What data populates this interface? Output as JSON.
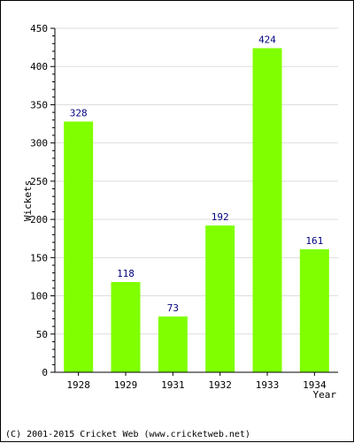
{
  "chart_data": {
    "type": "bar",
    "categories": [
      "1928",
      "1929",
      "1931",
      "1932",
      "1933",
      "1934"
    ],
    "values": [
      328,
      118,
      73,
      192,
      424,
      161
    ],
    "title": "",
    "xlabel": "Year",
    "ylabel": "Wickets",
    "ylim": [
      0,
      450
    ],
    "yticks": [
      0,
      50,
      100,
      150,
      200,
      250,
      300,
      350,
      400,
      450
    ],
    "grid": true,
    "bar_color": "#80ff00",
    "label_color": "#000080",
    "grid_color": "#dddddd"
  },
  "footer": {
    "copyright": "(C) 2001-2015 Cricket Web (www.cricketweb.net)"
  }
}
